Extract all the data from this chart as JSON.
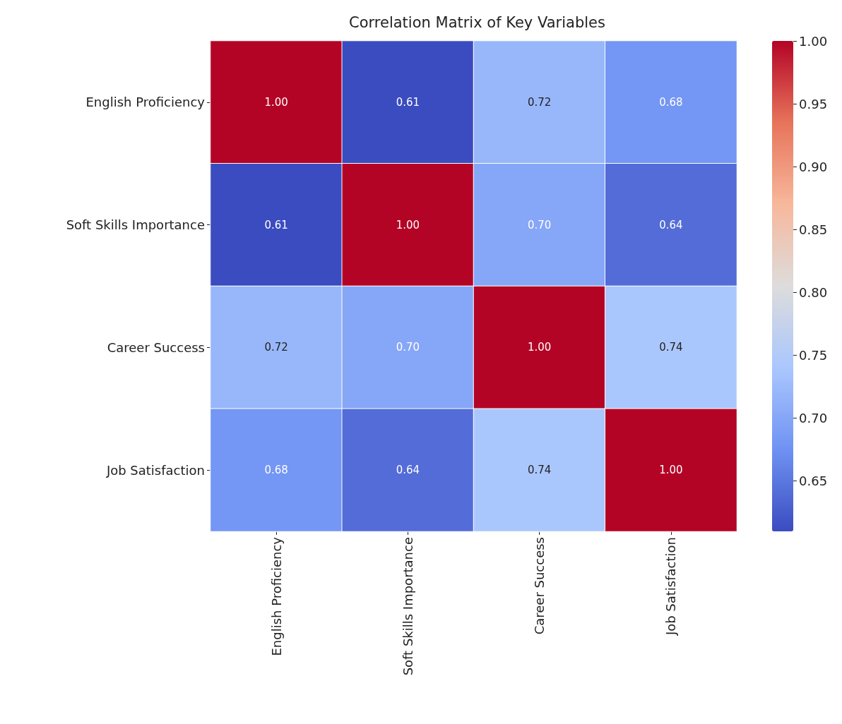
{
  "chart_data": {
    "type": "heatmap",
    "title": "Correlation Matrix of Key Variables",
    "categories": [
      "English Proficiency",
      "Soft Skills Importance",
      "Career Success",
      "Job Satisfaction"
    ],
    "y_categories": [
      "English Proficiency",
      "Soft Skills Importance",
      "Career Success",
      "Job Satisfaction"
    ],
    "cells": [
      [
        1.0,
        0.61,
        0.72,
        0.68
      ],
      [
        0.61,
        1.0,
        0.7,
        0.64
      ],
      [
        0.72,
        0.7,
        1.0,
        0.74
      ],
      [
        0.68,
        0.64,
        0.74,
        1.0
      ]
    ],
    "cell_labels": [
      [
        "1.00",
        "0.61",
        "0.72",
        "0.68"
      ],
      [
        "0.61",
        "1.00",
        "0.70",
        "0.64"
      ],
      [
        "0.72",
        "0.70",
        "1.00",
        "0.74"
      ],
      [
        "0.68",
        "0.64",
        "0.74",
        "1.00"
      ]
    ],
    "clim": [
      0.61,
      1.0
    ],
    "cticks": [
      0.65,
      {
        "value": 0.7,
        "label": "0.70"
      },
      0.75,
      {
        "value": 0.8,
        "label": "0.80"
      },
      0.85,
      {
        "value": 0.9,
        "label": "0.90"
      },
      0.95,
      {
        "value": 1.0,
        "label": "1.00"
      }
    ]
  }
}
